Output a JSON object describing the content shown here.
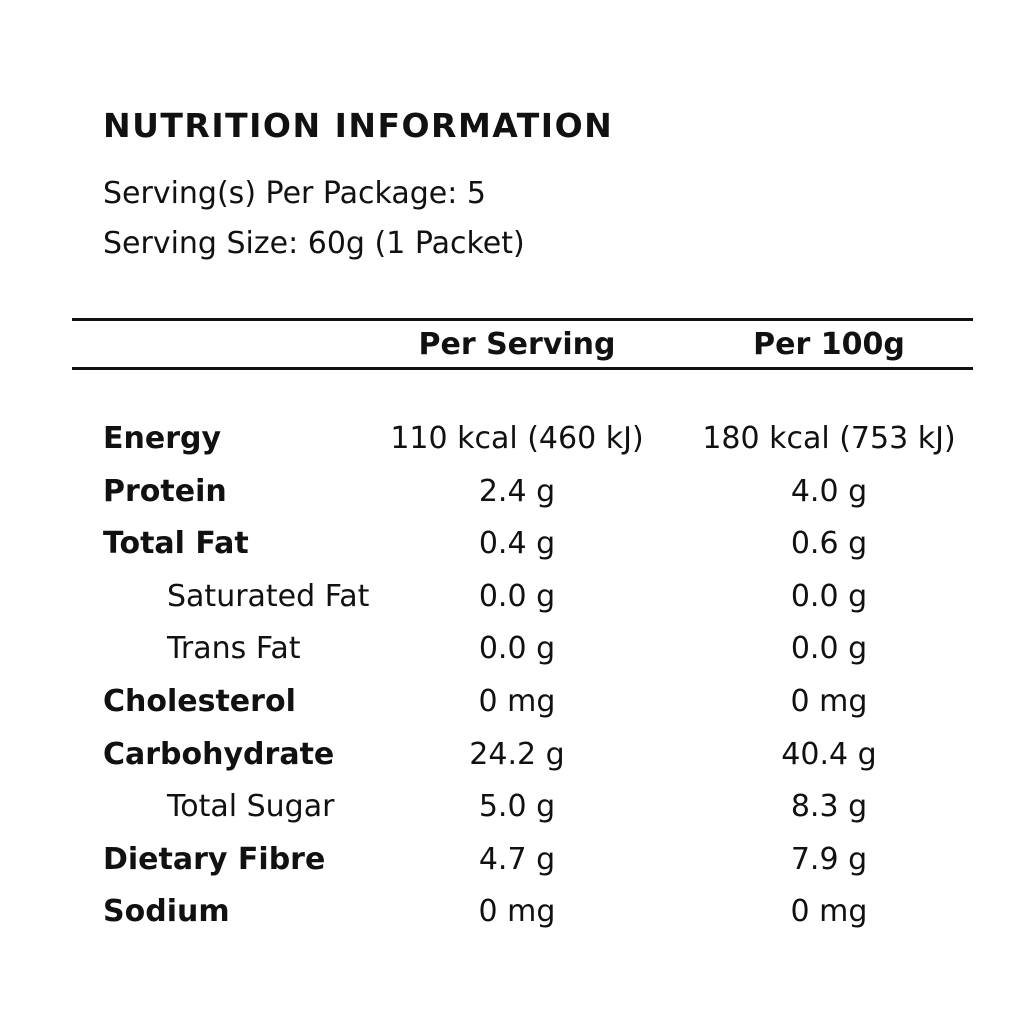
{
  "title": "NUTRITION INFORMATION",
  "servings_per_package": "Serving(s) Per Package: 5",
  "serving_size": "Serving Size: 60g (1 Packet)",
  "columns": [
    "Per Serving",
    "Per 100g"
  ],
  "rows": [
    {
      "label": "Energy",
      "per_serving": "110 kcal (460 kJ)",
      "per_100g": "180 kcal (753 kJ)",
      "sub": false
    },
    {
      "label": "Protein",
      "per_serving": "2.4 g",
      "per_100g": "4.0 g",
      "sub": false
    },
    {
      "label": "Total Fat",
      "per_serving": "0.4 g",
      "per_100g": "0.6 g",
      "sub": false
    },
    {
      "label": "Saturated Fat",
      "per_serving": "0.0 g",
      "per_100g": "0.0 g",
      "sub": true
    },
    {
      "label": "Trans Fat",
      "per_serving": "0.0 g",
      "per_100g": "0.0 g",
      "sub": true
    },
    {
      "label": "Cholesterol",
      "per_serving": "0 mg",
      "per_100g": "0 mg",
      "sub": false
    },
    {
      "label": "Carbohydrate",
      "per_serving": "24.2 g",
      "per_100g": "40.4 g",
      "sub": false
    },
    {
      "label": "Total Sugar",
      "per_serving": "5.0 g",
      "per_100g": "8.3 g",
      "sub": true
    },
    {
      "label": "Dietary Fibre",
      "per_serving": "4.7 g",
      "per_100g": "7.9 g",
      "sub": false
    },
    {
      "label": "Sodium",
      "per_serving": "0 mg",
      "per_100g": "0 mg",
      "sub": false
    }
  ]
}
